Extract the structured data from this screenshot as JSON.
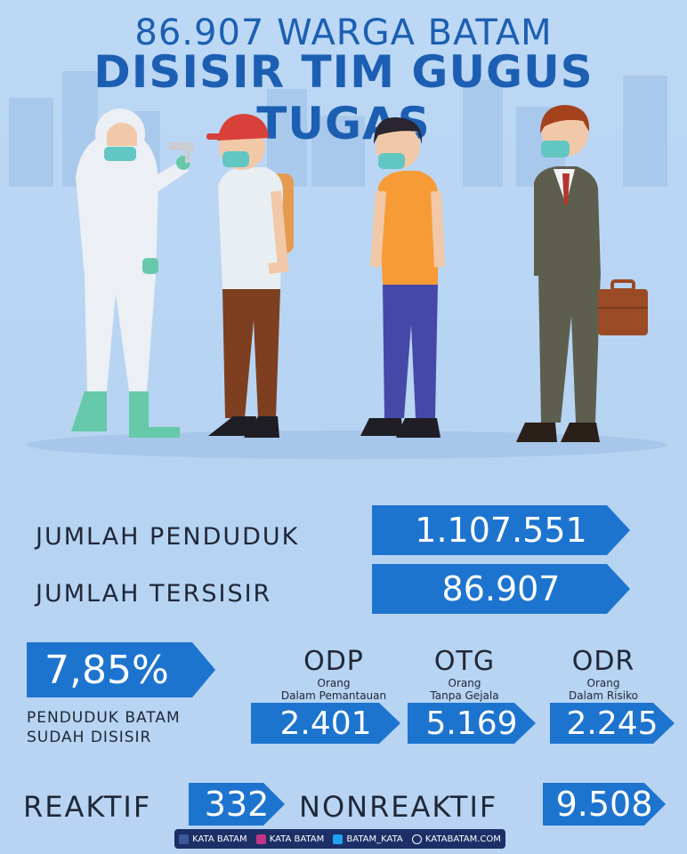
{
  "title_line1": "86.907 WARGA BATAM",
  "title_line2": "DISISIR TIM GUGUS TUGAS",
  "stats": {
    "jumlah_penduduk_label": "JUMLAH PENDUDUK",
    "jumlah_penduduk_value": "1.107.551",
    "jumlah_tersisir_label": "JUMLAH TERSISIR",
    "jumlah_tersisir_value": "86.907"
  },
  "percentage": {
    "value": "7,85%",
    "caption_line1": "PENDUDUK BATAM",
    "caption_line2": "SUDAH DISISIR"
  },
  "categories": [
    {
      "code": "ODP",
      "desc_line1": "Orang",
      "desc_line2": "Dalam Pemantauan",
      "value": "2.401"
    },
    {
      "code": "OTG",
      "desc_line1": "Orang",
      "desc_line2": "Tanpa Gejala",
      "value": "5.169"
    },
    {
      "code": "ODR",
      "desc_line1": "Orang",
      "desc_line2": "Dalam Risiko",
      "value": "2.245"
    }
  ],
  "tests": {
    "reaktif_label": "REAKTIF",
    "reaktif_value": "332",
    "nonreaktif_label": "NONREAKTIF",
    "nonreaktif_value": "9.508"
  },
  "footer": {
    "facebook": "KATA BATAM",
    "instagram": "KATA BATAM",
    "twitter": "BATAM_KATA",
    "website": "KATABATAM.COM"
  },
  "colors": {
    "background": "#b9d6f4",
    "title_blue": "#1c5fb2",
    "arrow_blue": "#1d74cf",
    "footer_navy": "#1c2f66"
  }
}
